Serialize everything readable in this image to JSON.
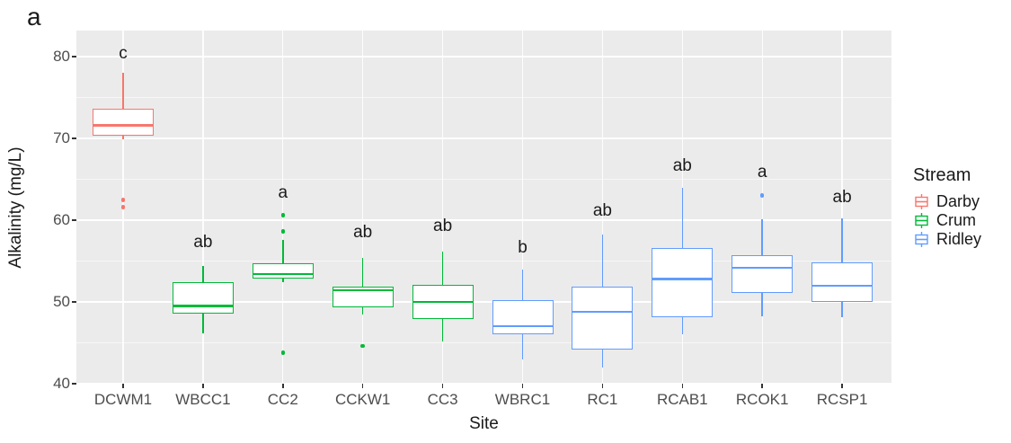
{
  "figure": {
    "panel_label": "a"
  },
  "chart_data": {
    "type": "boxplot",
    "title": "",
    "xlabel": "Site",
    "ylabel": "Alkalinity (mg/L)",
    "ylim": [
      39.9,
      83.2
    ],
    "grid": "white major+minor horizontal lines and vertical category lines on grey panel",
    "legend": {
      "title": "Stream",
      "position": "right",
      "entries": [
        {
          "label": "Darby",
          "color": "#F8766D"
        },
        {
          "label": "Crum",
          "color": "#00BA38"
        },
        {
          "label": "Ridley",
          "color": "#619CFF"
        }
      ]
    },
    "y_axis": {
      "major_ticks": [
        40,
        50,
        60,
        70,
        80
      ],
      "minor_ticks": [
        45,
        55,
        65,
        75
      ]
    },
    "categories": [
      "DCWM1",
      "WBCC1",
      "CC2",
      "CCKW1",
      "CC3",
      "WBRC1",
      "RC1",
      "RCAB1",
      "RCOK1",
      "RCSP1"
    ],
    "boxes": [
      {
        "site": "DCWM1",
        "stream": "Darby",
        "letter": "c",
        "letter_y": 80.3,
        "whisker_low": 69.9,
        "q1": 70.3,
        "median": 71.6,
        "q3": 73.6,
        "whisker_high": 78.0,
        "outliers": [
          62.5,
          61.6
        ]
      },
      {
        "site": "WBCC1",
        "stream": "Crum",
        "letter": "ab",
        "letter_y": 57.2,
        "whisker_low": 46.1,
        "q1": 48.6,
        "median": 49.5,
        "q3": 52.4,
        "whisker_high": 54.4,
        "outliers": []
      },
      {
        "site": "CC2",
        "stream": "Crum",
        "letter": "a",
        "letter_y": 63.3,
        "whisker_low": 52.4,
        "q1": 52.9,
        "median": 53.4,
        "q3": 54.7,
        "whisker_high": 57.6,
        "outliers": [
          60.6,
          58.6,
          43.8
        ]
      },
      {
        "site": "CCKW1",
        "stream": "Crum",
        "letter": "ab",
        "letter_y": 58.5,
        "whisker_low": 48.5,
        "q1": 49.3,
        "median": 51.4,
        "q3": 51.9,
        "whisker_high": 55.4,
        "outliers": [
          44.6
        ]
      },
      {
        "site": "CC3",
        "stream": "Crum",
        "letter": "ab",
        "letter_y": 59.2,
        "whisker_low": 45.2,
        "q1": 47.9,
        "median": 50.0,
        "q3": 52.1,
        "whisker_high": 56.2,
        "outliers": []
      },
      {
        "site": "WBRC1",
        "stream": "Ridley",
        "letter": "b",
        "letter_y": 56.6,
        "whisker_low": 43.0,
        "q1": 46.0,
        "median": 47.0,
        "q3": 50.2,
        "whisker_high": 54.0,
        "outliers": []
      },
      {
        "site": "RC1",
        "stream": "Ridley",
        "letter": "ab",
        "letter_y": 61.1,
        "whisker_low": 42.0,
        "q1": 44.2,
        "median": 48.8,
        "q3": 51.9,
        "whisker_high": 58.2,
        "outliers": []
      },
      {
        "site": "RCAB1",
        "stream": "Ridley",
        "letter": "ab",
        "letter_y": 66.6,
        "whisker_low": 46.0,
        "q1": 48.1,
        "median": 52.8,
        "q3": 56.6,
        "whisker_high": 64.0,
        "outliers": []
      },
      {
        "site": "RCOK1",
        "stream": "Ridley",
        "letter": "a",
        "letter_y": 65.8,
        "whisker_low": 48.2,
        "q1": 51.1,
        "median": 54.2,
        "q3": 55.7,
        "whisker_high": 60.1,
        "outliers": [
          63.0
        ]
      },
      {
        "site": "RCSP1",
        "stream": "Ridley",
        "letter": "ab",
        "letter_y": 62.7,
        "whisker_low": 48.1,
        "q1": 50.0,
        "median": 52.0,
        "q3": 54.8,
        "whisker_high": 60.2,
        "outliers": []
      }
    ]
  }
}
